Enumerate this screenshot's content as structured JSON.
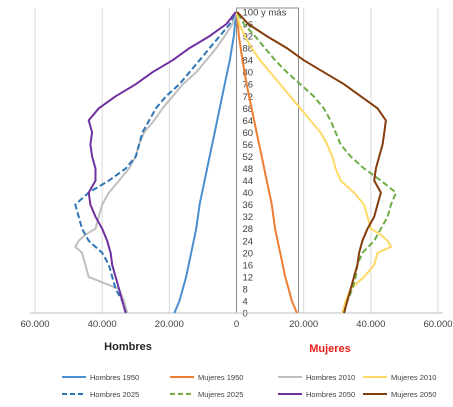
{
  "chart_data": {
    "type": "line",
    "title": "",
    "x_ticks": [
      {
        "value": -60000,
        "label": "60.000"
      },
      {
        "value": -40000,
        "label": "40.000"
      },
      {
        "value": -20000,
        "label": "20.000"
      },
      {
        "value": 0,
        "label": "0"
      },
      {
        "value": 20000,
        "label": "20.000"
      },
      {
        "value": 40000,
        "label": "40.000"
      },
      {
        "value": 60000,
        "label": "60.000"
      }
    ],
    "xlim": [
      -60000,
      60000
    ],
    "ylim": [
      0,
      100
    ],
    "age_labels": [
      "100 y más",
      "96",
      "92",
      "88",
      "84",
      "80",
      "76",
      "72",
      "68",
      "64",
      "60",
      "56",
      "52",
      "48",
      "44",
      "40",
      "36",
      "32",
      "28",
      "24",
      "20",
      "16",
      "12",
      "8",
      "4",
      "0"
    ],
    "left_label": "Hombres",
    "right_label": "Mujeres",
    "right_label_color": "#e8211a",
    "legend_position": "bottom",
    "series": [
      {
        "name": "Hombres 1950",
        "color": "#4a90d0",
        "dash": false,
        "side": "left",
        "ages": [
          0,
          4,
          8,
          12,
          20,
          28,
          36,
          44,
          52,
          60,
          68,
          76,
          84,
          92,
          100
        ],
        "values": [
          18500,
          17000,
          16000,
          15000,
          13500,
          12000,
          11000,
          9500,
          8000,
          6500,
          5000,
          3500,
          2000,
          800,
          100
        ]
      },
      {
        "name": "Mujeres 1950",
        "color": "#ed7d31",
        "dash": false,
        "side": "right",
        "ages": [
          0,
          4,
          8,
          12,
          20,
          28,
          36,
          44,
          52,
          60,
          68,
          76,
          84,
          92,
          100
        ],
        "values": [
          18000,
          16500,
          15500,
          14500,
          13000,
          11500,
          10500,
          9000,
          7500,
          6000,
          4500,
          3000,
          1800,
          700,
          100
        ]
      },
      {
        "name": "Hombres 2010",
        "color": "#bfbfbf",
        "dash": false,
        "side": "left",
        "ages": [
          0,
          4,
          8,
          12,
          16,
          20,
          22,
          24,
          26,
          28,
          32,
          36,
          40,
          44,
          48,
          52,
          56,
          60,
          64,
          68,
          72,
          76,
          80,
          84,
          88,
          92,
          96,
          100
        ],
        "values": [
          32500,
          33500,
          35000,
          44000,
          45000,
          46000,
          48000,
          47000,
          45000,
          42000,
          41000,
          40000,
          38000,
          35000,
          32000,
          30000,
          29000,
          27500,
          24500,
          22000,
          19000,
          16000,
          12000,
          9000,
          6000,
          3500,
          1200,
          100
        ]
      },
      {
        "name": "Mujeres 2010",
        "color": "#ffd966",
        "dash": false,
        "side": "right",
        "ages": [
          0,
          4,
          8,
          12,
          16,
          20,
          22,
          24,
          26,
          28,
          32,
          36,
          40,
          44,
          48,
          52,
          56,
          60,
          64,
          68,
          72,
          76,
          80,
          84,
          88,
          92,
          96,
          100
        ],
        "values": [
          31500,
          32500,
          34000,
          38000,
          41000,
          42000,
          46000,
          45000,
          43000,
          40000,
          39000,
          38000,
          35000,
          31000,
          29500,
          28500,
          27000,
          25000,
          22000,
          19000,
          16000,
          13000,
          10000,
          7000,
          4500,
          2500,
          800,
          100
        ]
      },
      {
        "name": "Hombres 2025",
        "color": "#2e75b6",
        "dash": true,
        "side": "left",
        "ages": [
          0,
          4,
          8,
          12,
          16,
          20,
          24,
          28,
          32,
          36,
          40,
          44,
          48,
          52,
          56,
          60,
          64,
          68,
          72,
          76,
          80,
          84,
          88,
          92,
          96,
          100
        ],
        "values": [
          33000,
          34000,
          36000,
          37000,
          38000,
          40000,
          44000,
          46000,
          47000,
          48000,
          44000,
          38000,
          33000,
          30000,
          29000,
          28000,
          26000,
          24000,
          21000,
          17000,
          14000,
          11000,
          8000,
          5000,
          2000,
          200
        ]
      },
      {
        "name": "Mujeres 2025",
        "color": "#70ad47",
        "dash": true,
        "side": "right",
        "ages": [
          0,
          4,
          8,
          12,
          16,
          20,
          24,
          28,
          32,
          36,
          40,
          44,
          48,
          52,
          56,
          60,
          64,
          68,
          72,
          76,
          80,
          84,
          88,
          92,
          96,
          100
        ],
        "values": [
          32000,
          33000,
          34500,
          35500,
          36000,
          37500,
          41000,
          43000,
          45000,
          46000,
          47500,
          43000,
          38000,
          34000,
          31000,
          29500,
          28000,
          26000,
          23000,
          19000,
          15000,
          11500,
          8500,
          5500,
          2200,
          200
        ]
      },
      {
        "name": "Hombres 2050",
        "color": "#7030a0",
        "dash": false,
        "side": "left",
        "ages": [
          0,
          4,
          8,
          12,
          16,
          20,
          24,
          28,
          32,
          36,
          40,
          44,
          48,
          52,
          56,
          60,
          64,
          68,
          72,
          76,
          80,
          84,
          88,
          92,
          96,
          100
        ],
        "values": [
          33000,
          34000,
          35000,
          36000,
          37000,
          37500,
          38500,
          40000,
          42000,
          43500,
          44000,
          42000,
          42000,
          43000,
          43500,
          43000,
          44000,
          41000,
          36000,
          30000,
          25000,
          19000,
          14000,
          8000,
          3000,
          200
        ]
      },
      {
        "name": "Mujeres 2050",
        "color": "#843c0c",
        "dash": false,
        "side": "right",
        "ages": [
          0,
          4,
          8,
          12,
          16,
          20,
          24,
          28,
          32,
          36,
          40,
          44,
          48,
          52,
          56,
          60,
          64,
          68,
          72,
          76,
          80,
          84,
          88,
          92,
          96,
          100
        ],
        "values": [
          32000,
          33000,
          34000,
          35000,
          36000,
          36500,
          37500,
          39000,
          41000,
          42000,
          43000,
          41000,
          41500,
          42500,
          43500,
          44000,
          44500,
          42000,
          37000,
          32000,
          26000,
          20000,
          15000,
          9000,
          3500,
          200
        ]
      }
    ]
  }
}
